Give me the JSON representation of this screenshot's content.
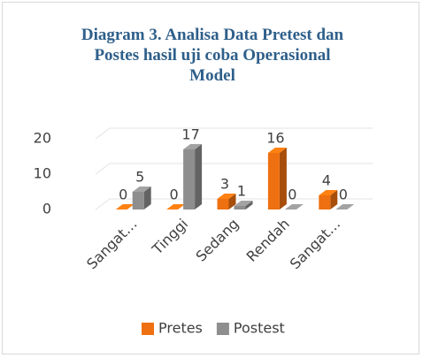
{
  "chart_data": {
    "type": "bar3d",
    "title": "Diagram 3.  Analisa Data Pretest dan Postes hasil uji coba Operasional Model",
    "categories": [
      "Sangat…",
      "Tinggi",
      "Sedang",
      "Rendah",
      "Sangat…"
    ],
    "series": [
      {
        "name": "Pretes",
        "color": "#ee7010",
        "values": [
          0,
          0,
          3,
          16,
          4
        ]
      },
      {
        "name": "Postest",
        "color": "#8e8e8e",
        "values": [
          5,
          17,
          1,
          0,
          0
        ]
      }
    ],
    "ylim": [
      0,
      20
    ],
    "yticks": [
      0,
      10,
      20
    ],
    "grid": true,
    "legend": "bottom"
  }
}
